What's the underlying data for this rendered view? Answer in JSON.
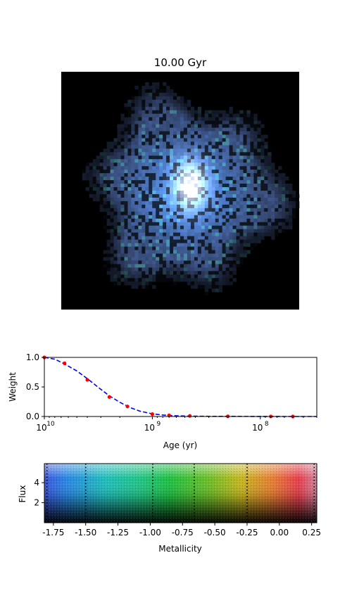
{
  "image_panel": {
    "title": "10.00 Gyr"
  },
  "chart_data": [
    {
      "type": "line",
      "xlabel": "Age (yr)",
      "ylabel": "Weight",
      "xscale": "log",
      "xaxis_direction": "decreasing",
      "xlim": [
        10000000000,
        30000000
      ],
      "ylim": [
        0.0,
        1.0
      ],
      "xticks": [
        {
          "value": 10000000000,
          "base": "10",
          "exp": "10"
        },
        {
          "value": 1000000000,
          "base": "10",
          "exp": "9"
        },
        {
          "value": 100000000,
          "base": "10",
          "exp": "8"
        }
      ],
      "yticks": [
        "0.0",
        "0.5",
        "1.0"
      ],
      "series": [
        {
          "style": "dashed-line",
          "color": "#0000ff",
          "x": [
            10000000000,
            8000000000,
            6500000000,
            5000000000,
            4000000000,
            3000000000,
            2500000000,
            2000000000,
            1600000000,
            1300000000,
            1000000000,
            800000000,
            600000000,
            450000000,
            300000000,
            200000000,
            100000000,
            60000000,
            30000000
          ],
          "y": [
            1.0,
            0.97,
            0.89,
            0.77,
            0.64,
            0.46,
            0.35,
            0.24,
            0.15,
            0.09,
            0.045,
            0.025,
            0.012,
            0.006,
            0.003,
            0.002,
            0.001,
            0.0,
            0.0
          ]
        },
        {
          "style": "points",
          "color": "#ff0000",
          "x": [
            10000000000,
            6500000000,
            4000000000,
            2500000000,
            1700000000,
            1000000000,
            700000000,
            450000000,
            200000000,
            80000000,
            50000000
          ],
          "y": [
            1.0,
            0.9,
            0.62,
            0.33,
            0.17,
            0.04,
            0.02,
            0.01,
            0.003,
            0.001,
            0.0
          ]
        }
      ]
    },
    {
      "type": "heatmap",
      "xlabel": "Metallicity",
      "ylabel": "Flux",
      "xlim": [
        -1.82,
        0.29
      ],
      "ylim": [
        0.0,
        5.9
      ],
      "xticks": [
        "-1.75",
        "-1.50",
        "-1.25",
        "-1.00",
        "-0.75",
        "-0.50",
        "-0.25",
        "0.00",
        "0.25"
      ],
      "xtick_values": [
        -1.75,
        -1.5,
        -1.25,
        -1.0,
        -0.75,
        -0.5,
        -0.25,
        0.0,
        0.25
      ],
      "yticks": [
        "2",
        "4"
      ],
      "ytick_values": [
        2,
        4
      ],
      "vlines": [
        -1.8,
        -1.5,
        -0.98,
        -0.66,
        -0.25,
        0.27
      ],
      "hue_stops": [
        {
          "value": -1.82,
          "color": "#3a55e8"
        },
        {
          "value": -1.65,
          "color": "#2288ee"
        },
        {
          "value": -1.35,
          "color": "#16c2c0"
        },
        {
          "value": -1.1,
          "color": "#18c98a"
        },
        {
          "value": -0.85,
          "color": "#16c53c"
        },
        {
          "value": -0.55,
          "color": "#68c21e"
        },
        {
          "value": -0.3,
          "color": "#c8b812"
        },
        {
          "value": -0.05,
          "color": "#ee7a2a"
        },
        {
          "value": 0.15,
          "color": "#f03a4a"
        },
        {
          "value": 0.29,
          "color": "#d8809a"
        }
      ]
    }
  ]
}
